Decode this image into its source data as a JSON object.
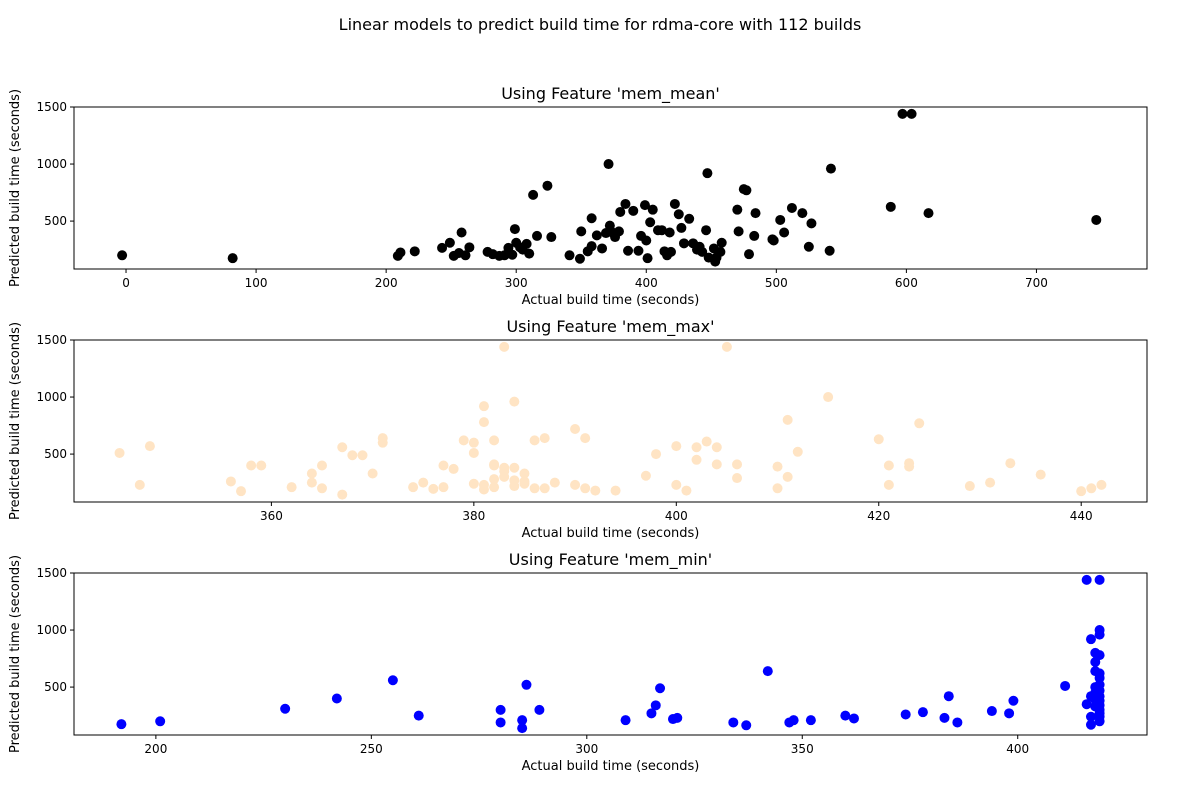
{
  "figure": {
    "suptitle": "Linear models to predict build time for rdma-core with 112 builds"
  },
  "chart_data": [
    {
      "type": "scatter",
      "title": "Using Feature 'mem_mean'",
      "xlabel": "Actual build time (seconds)",
      "ylabel": "Predicted build time (seconds)",
      "xlim": [
        -40,
        785
      ],
      "ylim": [
        80,
        1500
      ],
      "xticks": [
        0,
        100,
        200,
        300,
        400,
        500,
        600,
        700
      ],
      "yticks": [
        500,
        1000,
        1500
      ],
      "color": "#000000",
      "grid": false,
      "x": [
        -3,
        82,
        209,
        211,
        222,
        243,
        249,
        252,
        256,
        258,
        261,
        264,
        278,
        282,
        287,
        291,
        294,
        297,
        299,
        300,
        303,
        305,
        308,
        310,
        313,
        316,
        324,
        327,
        341,
        349,
        350,
        355,
        358,
        358,
        362,
        366,
        369,
        371,
        372,
        374,
        376,
        379,
        380,
        384,
        386,
        390,
        394,
        396,
        399,
        400,
        401,
        403,
        405,
        409,
        412,
        414,
        416,
        418,
        419,
        422,
        425,
        427,
        429,
        433,
        436,
        439,
        441,
        443,
        446,
        447,
        448,
        452,
        453,
        454,
        457,
        458,
        470,
        471,
        475,
        477,
        479,
        483,
        484,
        497,
        498,
        503,
        506,
        512,
        520,
        525,
        527,
        541,
        542,
        588,
        597,
        604,
        617,
        746
      ],
      "y": [
        200,
        175,
        195,
        225,
        235,
        265,
        310,
        195,
        220,
        400,
        200,
        270,
        230,
        210,
        195,
        200,
        265,
        205,
        430,
        310,
        270,
        250,
        300,
        215,
        730,
        370,
        810,
        360,
        200,
        170,
        410,
        235,
        525,
        280,
        375,
        260,
        395,
        1000,
        460,
        400,
        360,
        410,
        580,
        650,
        240,
        590,
        240,
        370,
        640,
        330,
        175,
        490,
        600,
        420,
        420,
        235,
        200,
        400,
        230,
        650,
        560,
        440,
        305,
        520,
        305,
        250,
        275,
        230,
        420,
        920,
        180,
        260,
        145,
        180,
        230,
        310,
        600,
        410,
        780,
        770,
        210,
        370,
        570,
        340,
        330,
        510,
        400,
        615,
        570,
        275,
        480,
        240,
        960,
        625,
        1440,
        1440,
        570,
        510
      ]
    },
    {
      "type": "scatter",
      "title": "Using Feature 'mem_max'",
      "xlabel": "Actual build time (seconds)",
      "ylabel": "Predicted build time (seconds)",
      "xlim": [
        340.5,
        446.5
      ],
      "ylim": [
        80,
        1500
      ],
      "xticks": [
        360,
        380,
        400,
        420,
        440
      ],
      "yticks": [
        500,
        1000,
        1500
      ],
      "color": "#ffe4c4",
      "grid": false,
      "x": [
        345,
        347,
        348,
        356,
        357,
        358,
        359,
        362,
        364,
        364,
        365,
        365,
        367,
        367,
        368,
        369,
        370,
        371,
        371,
        374,
        375,
        376,
        377,
        377,
        378,
        379,
        380,
        380,
        380,
        381,
        381,
        381,
        381,
        382,
        382,
        382,
        382,
        382,
        383,
        383,
        383,
        383,
        384,
        384,
        384,
        384,
        385,
        385,
        385,
        386,
        386,
        387,
        387,
        388,
        390,
        390,
        391,
        391,
        392,
        394,
        397,
        398,
        400,
        400,
        401,
        402,
        402,
        403,
        404,
        404,
        405,
        406,
        406,
        410,
        410,
        411,
        411,
        412,
        415,
        420,
        421,
        421,
        423,
        423,
        424,
        429,
        431,
        433,
        436,
        440,
        441,
        442
      ],
      "y": [
        510,
        230,
        570,
        260,
        175,
        400,
        400,
        210,
        330,
        250,
        400,
        200,
        560,
        145,
        490,
        490,
        330,
        640,
        600,
        210,
        250,
        195,
        210,
        400,
        370,
        620,
        600,
        510,
        240,
        230,
        190,
        780,
        920,
        410,
        400,
        620,
        280,
        210,
        1440,
        380,
        350,
        300,
        270,
        220,
        960,
        380,
        330,
        260,
        240,
        620,
        200,
        200,
        640,
        250,
        720,
        230,
        640,
        200,
        180,
        180,
        310,
        500,
        570,
        230,
        180,
        450,
        560,
        610,
        410,
        560,
        1440,
        290,
        410,
        200,
        390,
        800,
        300,
        520,
        1000,
        630,
        230,
        400,
        420,
        390,
        770,
        220,
        250,
        420,
        320,
        175,
        200,
        230
      ]
    },
    {
      "type": "scatter",
      "title": "Using Feature 'mem_min'",
      "xlabel": "Actual build time (seconds)",
      "ylabel": "Predicted build time (seconds)",
      "xlim": [
        181,
        430
      ],
      "ylim": [
        80,
        1500
      ],
      "xticks": [
        200,
        250,
        300,
        350,
        400
      ],
      "yticks": [
        500,
        1000,
        1500
      ],
      "color": "#0000ff",
      "grid": false,
      "x": [
        192,
        201,
        230,
        242,
        255,
        261,
        280,
        280,
        285,
        285,
        286,
        289,
        309,
        315,
        316,
        317,
        320,
        321,
        334,
        337,
        342,
        347,
        348,
        352,
        360,
        362,
        374,
        378,
        383,
        384,
        386,
        394,
        398,
        399,
        411,
        416,
        416,
        417,
        417,
        417,
        417,
        418,
        418,
        418,
        418,
        418,
        418,
        418,
        419,
        419,
        419,
        419,
        419,
        419,
        419,
        419,
        419,
        419,
        419,
        419,
        419,
        419,
        419
      ],
      "y": [
        175,
        200,
        310,
        400,
        560,
        250,
        300,
        190,
        210,
        140,
        520,
        300,
        210,
        270,
        340,
        490,
        220,
        230,
        190,
        165,
        640,
        190,
        210,
        210,
        250,
        225,
        260,
        280,
        230,
        420,
        190,
        290,
        270,
        380,
        510,
        1440,
        350,
        920,
        240,
        170,
        420,
        800,
        720,
        640,
        500,
        450,
        390,
        330,
        1440,
        1000,
        960,
        780,
        620,
        580,
        520,
        470,
        420,
        380,
        340,
        300,
        270,
        240,
        200
      ]
    }
  ]
}
